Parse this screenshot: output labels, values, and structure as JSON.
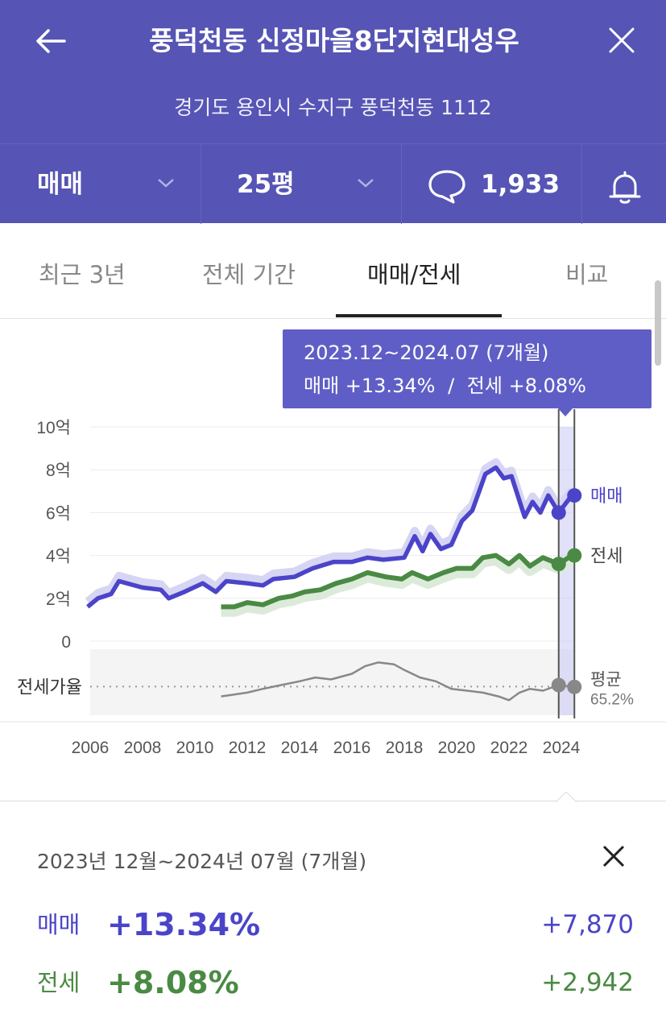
{
  "header": {
    "title": "풍덕천동 신정마을8단지현대성우",
    "address": "경기도 용인시 수지구 풍덕천동 1112",
    "deal_type": "매매",
    "area": "25평",
    "comment_count": "1,933"
  },
  "tabs": [
    {
      "label": "최근 3년",
      "active": false
    },
    {
      "label": "전체 기간",
      "active": false
    },
    {
      "label": "매매/전세",
      "active": true
    },
    {
      "label": "비교",
      "active": false
    }
  ],
  "tooltip": {
    "period": "2023.12~2024.07 (7개월)",
    "sale_change": "매매 +13.34%",
    "divider": "/",
    "jeonse_change": "전세 +8.08%"
  },
  "chart_data": {
    "type": "line",
    "x_ticks": [
      "2006",
      "2008",
      "2010",
      "2012",
      "2014",
      "2016",
      "2018",
      "2020",
      "2022",
      "2024"
    ],
    "y_ticks": [
      "10억",
      "8억",
      "6억",
      "4억",
      "2억",
      "0"
    ],
    "ylim": [
      0,
      10
    ],
    "series": [
      {
        "name": "매매",
        "color": "#4b44c9",
        "x": [
          2005.9,
          2006.3,
          2006.8,
          2007.1,
          2008,
          2008.7,
          2009,
          2009.6,
          2010.3,
          2010.8,
          2011.2,
          2012,
          2012.6,
          2013,
          2013.8,
          2014.5,
          2015.3,
          2016,
          2016.6,
          2017.2,
          2018,
          2018.4,
          2018.7,
          2019,
          2019.4,
          2019.8,
          2020.2,
          2020.6,
          2021.1,
          2021.5,
          2021.8,
          2022.1,
          2022.6,
          2022.9,
          2023.2,
          2023.5,
          2023.9,
          2024.4
        ],
        "y": [
          1.6,
          2.0,
          2.2,
          2.8,
          2.5,
          2.4,
          2.0,
          2.3,
          2.7,
          2.3,
          2.8,
          2.7,
          2.6,
          2.9,
          3.0,
          3.4,
          3.7,
          3.7,
          3.9,
          3.8,
          3.9,
          4.9,
          4.2,
          5.0,
          4.3,
          4.5,
          5.6,
          6.1,
          7.8,
          8.1,
          7.6,
          7.7,
          5.8,
          6.5,
          6.0,
          6.8,
          6.0,
          6.8
        ]
      },
      {
        "name": "전세",
        "color": "#4a8a44",
        "x": [
          2011,
          2011.5,
          2012,
          2012.6,
          2013.2,
          2013.7,
          2014.2,
          2014.8,
          2015.4,
          2016,
          2016.6,
          2017.3,
          2017.9,
          2018.3,
          2018.9,
          2019.5,
          2020,
          2020.6,
          2021,
          2021.5,
          2022,
          2022.4,
          2022.8,
          2023.3,
          2023.9,
          2024.4
        ],
        "y": [
          1.6,
          1.6,
          1.8,
          1.7,
          2.0,
          2.1,
          2.3,
          2.4,
          2.7,
          2.9,
          3.2,
          3.0,
          2.9,
          3.2,
          2.9,
          3.2,
          3.4,
          3.4,
          3.9,
          4.0,
          3.6,
          4.0,
          3.5,
          3.9,
          3.6,
          4.0
        ]
      },
      {
        "name": "전세가율",
        "color": "#888888",
        "x": [
          2011,
          2012,
          2012.6,
          2013.3,
          2014,
          2014.6,
          2015.2,
          2016,
          2016.5,
          2017,
          2017.6,
          2018,
          2018.6,
          2019.2,
          2019.8,
          2020.4,
          2021,
          2021.6,
          2022,
          2022.4,
          2022.8,
          2023.3,
          2023.9,
          2024.4
        ],
        "y": [
          60,
          62,
          64,
          66,
          68,
          70,
          69,
          72,
          76,
          78,
          77,
          74,
          70,
          68,
          64,
          63,
          62,
          60,
          58,
          62,
          64,
          63,
          66,
          65
        ]
      }
    ],
    "selection_start": 2023.9,
    "selection_end": 2024.5,
    "legend": [
      "매매",
      "전세"
    ],
    "ratio_label": "전세가율",
    "avg_label": "평균",
    "avg_value": "65.2%"
  },
  "summary": {
    "period": "2023년 12월~2024년 07월 (7개월)",
    "sale_label": "매매",
    "sale_pct": "+13.34%",
    "sale_amount": "+7,870",
    "jeonse_label": "전세",
    "jeonse_pct": "+8.08%",
    "jeonse_amount": "+2,942"
  },
  "colors": {
    "header_bg": "#5654b4",
    "sale": "#4b44c9",
    "jeonse": "#4a8a44",
    "tooltip_bg": "#5f5ec6"
  }
}
